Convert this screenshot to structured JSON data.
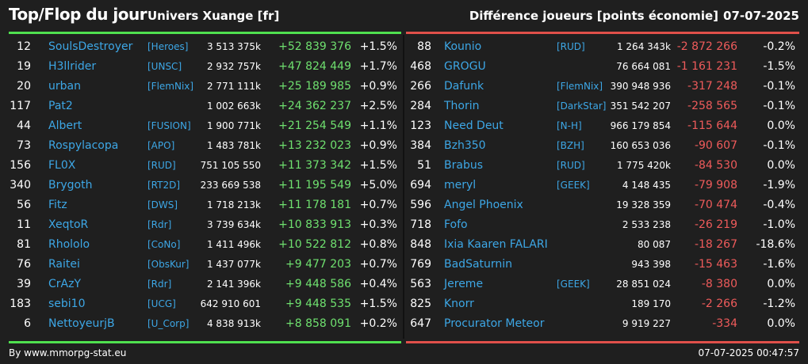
{
  "header": {
    "title": "Top/Flop du jour",
    "universe": "Univers Xuange [fr]",
    "diff_title": "Différence joueurs [points économie]",
    "date": "07-07-2025"
  },
  "colors": {
    "top_bar": "#4fe04f",
    "flop_bar": "#e0504a",
    "positive": "#6fe06f",
    "negative": "#ef5b5b",
    "link": "#3da7e6",
    "background": "#1f1f1f"
  },
  "top": [
    {
      "rank": "12",
      "name": "SoulsDestroyer",
      "ally": "[Heroes]",
      "points": "3 513 375k",
      "diff": "+52 839 376",
      "pct": "+1.5%"
    },
    {
      "rank": "19",
      "name": "H3llrider",
      "ally": "[UNSC]",
      "points": "2 932 757k",
      "diff": "+47 824 449",
      "pct": "+1.7%"
    },
    {
      "rank": "20",
      "name": "urban",
      "ally": "[FlemNix]",
      "points": "2 771 111k",
      "diff": "+25 189 985",
      "pct": "+0.9%"
    },
    {
      "rank": "117",
      "name": "Pat2",
      "ally": "",
      "points": "1 002 663k",
      "diff": "+24 362 237",
      "pct": "+2.5%"
    },
    {
      "rank": "44",
      "name": "Albert",
      "ally": "[FUSION]",
      "points": "1 900 771k",
      "diff": "+21 254 549",
      "pct": "+1.1%"
    },
    {
      "rank": "73",
      "name": "Rospylacopa",
      "ally": "[APO]",
      "points": "1 483 781k",
      "diff": "+13 232 023",
      "pct": "+0.9%"
    },
    {
      "rank": "156",
      "name": "FL0X",
      "ally": "[RUD]",
      "points": "751 105 550",
      "diff": "+11 373 342",
      "pct": "+1.5%"
    },
    {
      "rank": "340",
      "name": "Brygoth",
      "ally": "[RT2D]",
      "points": "233 669 538",
      "diff": "+11 195 549",
      "pct": "+5.0%"
    },
    {
      "rank": "56",
      "name": "Fitz",
      "ally": "[DWS]",
      "points": "1 718 213k",
      "diff": "+11 178 181",
      "pct": "+0.7%"
    },
    {
      "rank": "11",
      "name": "XeqtoR",
      "ally": "[Rdr]",
      "points": "3 739 634k",
      "diff": "+10 833 913",
      "pct": "+0.3%"
    },
    {
      "rank": "81",
      "name": "Rhololo",
      "ally": "[CoNo]",
      "points": "1 411 496k",
      "diff": "+10 522 812",
      "pct": "+0.8%"
    },
    {
      "rank": "76",
      "name": "Raitei",
      "ally": "[ObsKur]",
      "points": "1 437 077k",
      "diff": "+9 477 203",
      "pct": "+0.7%"
    },
    {
      "rank": "39",
      "name": "CrAzY",
      "ally": "[Rdr]",
      "points": "2 141 396k",
      "diff": "+9 448 586",
      "pct": "+0.4%"
    },
    {
      "rank": "183",
      "name": "sebi10",
      "ally": "[UCG]",
      "points": "642 910 601",
      "diff": "+9 448 535",
      "pct": "+1.5%"
    },
    {
      "rank": "6",
      "name": "NettoyeurjB",
      "ally": "[U_Corp]",
      "points": "4 838 913k",
      "diff": "+8 858 091",
      "pct": "+0.2%"
    }
  ],
  "flop": [
    {
      "rank": "88",
      "name": "Kounio",
      "ally": "[RUD]",
      "points": "1 264 343k",
      "diff": "-2 872 266",
      "pct": "-0.2%"
    },
    {
      "rank": "468",
      "name": "GROGU",
      "ally": "",
      "points": "76 664 081",
      "diff": "-1 161 231",
      "pct": "-1.5%"
    },
    {
      "rank": "266",
      "name": "Dafunk",
      "ally": "[FlemNix]",
      "points": "390 948 936",
      "diff": "-317 248",
      "pct": "-0.1%"
    },
    {
      "rank": "284",
      "name": "Thorin",
      "ally": "[DarkStar]",
      "points": "351 542 207",
      "diff": "-258 565",
      "pct": "-0.1%"
    },
    {
      "rank": "123",
      "name": "Need Deut",
      "ally": "[N-H]",
      "points": "966 179 854",
      "diff": "-115 644",
      "pct": "0.0%"
    },
    {
      "rank": "384",
      "name": "Bzh350",
      "ally": "[BZH]",
      "points": "160 653 036",
      "diff": "-90 607",
      "pct": "-0.1%"
    },
    {
      "rank": "51",
      "name": "Brabus",
      "ally": "[RUD]",
      "points": "1 775 420k",
      "diff": "-84 530",
      "pct": "0.0%"
    },
    {
      "rank": "694",
      "name": "meryl",
      "ally": "[GEEK]",
      "points": "4 148 435",
      "diff": "-79 908",
      "pct": "-1.9%"
    },
    {
      "rank": "596",
      "name": "Angel Phoenix",
      "ally": "",
      "points": "19 328 359",
      "diff": "-70 474",
      "pct": "-0.4%"
    },
    {
      "rank": "718",
      "name": "Fofo",
      "ally": "",
      "points": "2 533 238",
      "diff": "-26 219",
      "pct": "-1.0%"
    },
    {
      "rank": "848",
      "name": "Ixia Kaaren FALARI",
      "ally": "",
      "points": "80 087",
      "diff": "-18 267",
      "pct": "-18.6%"
    },
    {
      "rank": "769",
      "name": "BadSaturnin",
      "ally": "",
      "points": "943 398",
      "diff": "-15 463",
      "pct": "-1.6%"
    },
    {
      "rank": "563",
      "name": "Jereme",
      "ally": "[GEEK]",
      "points": "28 851 024",
      "diff": "-8 380",
      "pct": "0.0%"
    },
    {
      "rank": "825",
      "name": "Knorr",
      "ally": "",
      "points": "189 170",
      "diff": "-2 266",
      "pct": "-1.2%"
    },
    {
      "rank": "647",
      "name": "Procurator Meteor",
      "ally": "",
      "points": "9 919 227",
      "diff": "-334",
      "pct": "0.0%"
    }
  ],
  "footer": {
    "credit": "By www.mmorpg-stat.eu",
    "timestamp": "07-07-2025 00:47:57"
  }
}
